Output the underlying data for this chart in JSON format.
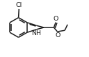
{
  "bg_color": "#ffffff",
  "line_color": "#1a1a1a",
  "line_width": 1.1,
  "font_size": 6.8,
  "fig_w": 1.28,
  "fig_h": 0.83,
  "dpi": 100,
  "xlim": [
    0,
    1.28
  ],
  "ylim": [
    0,
    0.83
  ]
}
